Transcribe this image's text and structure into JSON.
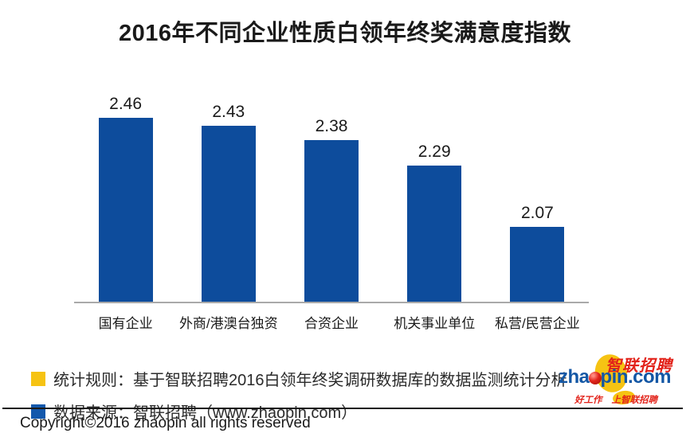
{
  "chart_data": {
    "type": "bar",
    "title": "2016年不同企业性质白领年终奖满意度指数",
    "categories": [
      "国有企业",
      "外商/港澳台独资",
      "合资企业",
      "机关事业单位",
      "私营/民营企业"
    ],
    "values": [
      2.46,
      2.43,
      2.38,
      2.29,
      2.07
    ],
    "xlabel": "",
    "ylabel": "",
    "ylim": [
      1.8,
      2.6
    ],
    "grid": false,
    "legend_position": "none",
    "bar_color": "#0d4c9c",
    "value_labels": true
  },
  "legend": {
    "items": [
      {
        "color": "#f6c313",
        "label": "统计规则：基于智联招聘2016白领年终奖调研数据库的数据监测统计分析"
      },
      {
        "color": "#1358ac",
        "label": "数据来源：智联招聘（www.zhaopin.com）"
      }
    ]
  },
  "footer": {
    "copyright": "Copyright©2016 zhaopin all rights reserved"
  },
  "logo": {
    "brand_cn": "智联招聘",
    "brand_text_pre": "zha",
    "brand_text_post": "pin.com",
    "tagline_left": "好工作",
    "tagline_right": "上智联招聘",
    "colors": {
      "red": "#e2231a",
      "blue": "#1357a5",
      "yellow": "#f6c313"
    }
  }
}
